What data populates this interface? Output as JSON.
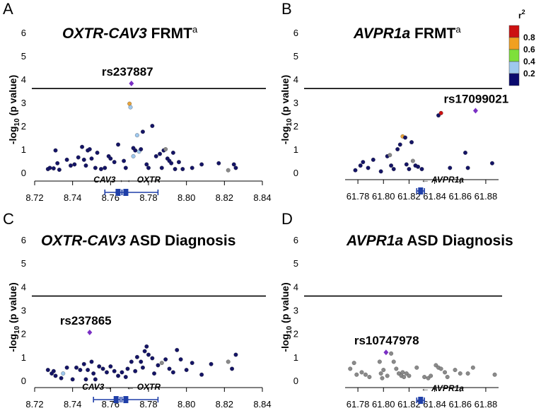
{
  "legend": {
    "title": "r2",
    "entries": [
      {
        "label": "0.8",
        "color": "#cc1111"
      },
      {
        "label": "0.6",
        "color": "#f0a020"
      },
      {
        "label": "0.4",
        "color": "#7ee03a"
      },
      {
        "label": "0.2",
        "color": "#9ec8ee"
      },
      {
        "label": "",
        "color": "#0a0a6e"
      }
    ]
  },
  "colors": {
    "navy": "#141466",
    "light_blue": "#9ec8ee",
    "orange": "#e8a33a",
    "red": "#cc1111",
    "gray": "#8a8a8a",
    "lead_purple": "#7a2fc4",
    "gene_blue": "#1f3fa8"
  },
  "chart_data": [
    {
      "type": "scatter",
      "panel": "A",
      "title": "OXTR-CAV3 FRMT",
      "title_superscript": "a",
      "ylabel": "-log10 (p value)",
      "ylim": [
        0,
        6
      ],
      "y_ticks": [
        "0",
        "1",
        "2",
        "3",
        "4",
        "5",
        "6"
      ],
      "xlim": [
        8.72,
        8.84
      ],
      "x_ticks": [
        "8.72",
        "8.74",
        "8.76",
        "8.78",
        "8.80",
        "8.82",
        "8.84"
      ],
      "threshold": 3.6,
      "lead_snp": {
        "label": "rs237887",
        "x": 8.771,
        "y": 3.82
      },
      "genes": [
        {
          "name": "CAV3",
          "direction": "right",
          "start": 8.757,
          "end": 8.766
        },
        {
          "name": "OXTR",
          "direction": "left",
          "start": 8.766,
          "end": 8.785
        }
      ],
      "points": [
        {
          "x": 8.727,
          "y": 0.15,
          "c": "navy"
        },
        {
          "x": 8.728,
          "y": 0.2,
          "c": "navy"
        },
        {
          "x": 8.73,
          "y": 0.18,
          "c": "navy"
        },
        {
          "x": 8.731,
          "y": 0.95,
          "c": "navy"
        },
        {
          "x": 8.732,
          "y": 0.4,
          "c": "navy"
        },
        {
          "x": 8.733,
          "y": 0.12,
          "c": "navy"
        },
        {
          "x": 8.737,
          "y": 0.55,
          "c": "navy"
        },
        {
          "x": 8.739,
          "y": 0.3,
          "c": "navy"
        },
        {
          "x": 8.741,
          "y": 0.35,
          "c": "navy"
        },
        {
          "x": 8.743,
          "y": 0.65,
          "c": "navy"
        },
        {
          "x": 8.745,
          "y": 1.1,
          "c": "navy"
        },
        {
          "x": 8.746,
          "y": 0.55,
          "c": "navy"
        },
        {
          "x": 8.747,
          "y": 0.3,
          "c": "navy"
        },
        {
          "x": 8.748,
          "y": 0.95,
          "c": "navy"
        },
        {
          "x": 8.749,
          "y": 1.0,
          "c": "navy"
        },
        {
          "x": 8.75,
          "y": 0.6,
          "c": "navy"
        },
        {
          "x": 8.752,
          "y": 0.2,
          "c": "navy"
        },
        {
          "x": 8.753,
          "y": 0.85,
          "c": "navy"
        },
        {
          "x": 8.755,
          "y": 0.15,
          "c": "navy"
        },
        {
          "x": 8.757,
          "y": 0.2,
          "c": "navy"
        },
        {
          "x": 8.759,
          "y": 0.7,
          "c": "navy"
        },
        {
          "x": 8.76,
          "y": 0.6,
          "c": "navy"
        },
        {
          "x": 8.762,
          "y": 0.45,
          "c": "navy"
        },
        {
          "x": 8.764,
          "y": 1.2,
          "c": "navy"
        },
        {
          "x": 8.767,
          "y": 0.5,
          "c": "navy"
        },
        {
          "x": 8.768,
          "y": 0.2,
          "c": "navy"
        },
        {
          "x": 8.77,
          "y": 2.95,
          "c": "orange"
        },
        {
          "x": 8.7705,
          "y": 2.8,
          "c": "light_blue"
        },
        {
          "x": 8.772,
          "y": 1.05,
          "c": "navy"
        },
        {
          "x": 8.773,
          "y": 0.95,
          "c": "navy"
        },
        {
          "x": 8.772,
          "y": 0.7,
          "c": "light_blue"
        },
        {
          "x": 8.774,
          "y": 1.6,
          "c": "light_blue"
        },
        {
          "x": 8.775,
          "y": 0.9,
          "c": "light_blue"
        },
        {
          "x": 8.776,
          "y": 1.0,
          "c": "navy"
        },
        {
          "x": 8.777,
          "y": 1.75,
          "c": "navy"
        },
        {
          "x": 8.779,
          "y": 0.35,
          "c": "navy"
        },
        {
          "x": 8.78,
          "y": 0.2,
          "c": "navy"
        },
        {
          "x": 8.782,
          "y": 2.0,
          "c": "navy"
        },
        {
          "x": 8.784,
          "y": 0.7,
          "c": "navy"
        },
        {
          "x": 8.786,
          "y": 0.8,
          "c": "navy"
        },
        {
          "x": 8.787,
          "y": 0.2,
          "c": "navy"
        },
        {
          "x": 8.788,
          "y": 0.95,
          "c": "navy"
        },
        {
          "x": 8.789,
          "y": 1.0,
          "c": "gray"
        },
        {
          "x": 8.79,
          "y": 0.6,
          "c": "navy"
        },
        {
          "x": 8.791,
          "y": 0.5,
          "c": "navy"
        },
        {
          "x": 8.792,
          "y": 0.4,
          "c": "navy"
        },
        {
          "x": 8.793,
          "y": 0.85,
          "c": "navy"
        },
        {
          "x": 8.794,
          "y": 0.15,
          "c": "navy"
        },
        {
          "x": 8.796,
          "y": 0.45,
          "c": "navy"
        },
        {
          "x": 8.798,
          "y": 0.15,
          "c": "navy"
        },
        {
          "x": 8.803,
          "y": 0.2,
          "c": "navy"
        },
        {
          "x": 8.808,
          "y": 0.35,
          "c": "navy"
        },
        {
          "x": 8.817,
          "y": 0.4,
          "c": "navy"
        },
        {
          "x": 8.822,
          "y": 0.1,
          "c": "gray"
        },
        {
          "x": 8.825,
          "y": 0.35,
          "c": "navy"
        },
        {
          "x": 8.826,
          "y": 0.2,
          "c": "navy"
        }
      ]
    },
    {
      "type": "scatter",
      "panel": "B",
      "title": "AVPR1a FRMT",
      "title_superscript": "a",
      "ylabel": "-log10 (p value)",
      "ylim": [
        0,
        6
      ],
      "y_ticks": [
        "0",
        "1",
        "2",
        "3",
        "4",
        "5",
        "6"
      ],
      "xlim": [
        61.77,
        61.89
      ],
      "x_ticks": [
        "61.78",
        "61.80",
        "61.82",
        "61.84",
        "61.86",
        "61.88"
      ],
      "threshold": 3.6,
      "lead_snp": {
        "label": "rs17099021",
        "x": 61.872,
        "y": 2.65
      },
      "genes": [
        {
          "name": "AVPR1a",
          "direction": "left",
          "start": 61.826,
          "end": 61.832
        }
      ],
      "points": [
        {
          "x": 61.778,
          "y": 0.1,
          "c": "navy"
        },
        {
          "x": 61.782,
          "y": 0.3,
          "c": "navy"
        },
        {
          "x": 61.784,
          "y": 0.45,
          "c": "navy"
        },
        {
          "x": 61.788,
          "y": 0.2,
          "c": "navy"
        },
        {
          "x": 61.792,
          "y": 0.55,
          "c": "navy"
        },
        {
          "x": 61.798,
          "y": 0.05,
          "c": "navy"
        },
        {
          "x": 61.803,
          "y": 0.7,
          "c": "navy"
        },
        {
          "x": 61.805,
          "y": 0.75,
          "c": "gray"
        },
        {
          "x": 61.806,
          "y": 0.3,
          "c": "navy"
        },
        {
          "x": 61.808,
          "y": 0.15,
          "c": "navy"
        },
        {
          "x": 61.811,
          "y": 1.0,
          "c": "navy"
        },
        {
          "x": 61.813,
          "y": 1.2,
          "c": "navy"
        },
        {
          "x": 61.815,
          "y": 1.55,
          "c": "orange"
        },
        {
          "x": 61.817,
          "y": 1.5,
          "c": "navy"
        },
        {
          "x": 61.818,
          "y": 0.35,
          "c": "navy"
        },
        {
          "x": 61.82,
          "y": 0.15,
          "c": "navy"
        },
        {
          "x": 61.822,
          "y": 1.3,
          "c": "navy"
        },
        {
          "x": 61.823,
          "y": 0.5,
          "c": "gray"
        },
        {
          "x": 61.825,
          "y": 0.3,
          "c": "navy"
        },
        {
          "x": 61.827,
          "y": 0.25,
          "c": "navy"
        },
        {
          "x": 61.83,
          "y": 0.15,
          "c": "navy"
        },
        {
          "x": 61.843,
          "y": 2.45,
          "c": "navy"
        },
        {
          "x": 61.845,
          "y": 2.55,
          "c": "red"
        },
        {
          "x": 61.852,
          "y": 0.2,
          "c": "navy"
        },
        {
          "x": 61.864,
          "y": 0.85,
          "c": "navy"
        },
        {
          "x": 61.866,
          "y": 0.2,
          "c": "navy"
        },
        {
          "x": 61.885,
          "y": 0.4,
          "c": "navy"
        }
      ]
    },
    {
      "type": "scatter",
      "panel": "C",
      "title": "OXTR-CAV3 ASD Diagnosis",
      "ylabel": "-log10 (p value)",
      "ylim": [
        0,
        6
      ],
      "y_ticks": [
        "0",
        "1",
        "2",
        "3",
        "4",
        "5",
        "6"
      ],
      "xlim": [
        8.72,
        8.84
      ],
      "x_ticks": [
        "8.72",
        "8.74",
        "8.76",
        "8.78",
        "8.80",
        "8.82",
        "8.84"
      ],
      "threshold": 3.6,
      "lead_snp": {
        "label": "rs237865",
        "x": 8.749,
        "y": 2.05
      },
      "genes": [
        {
          "name": "CAV3",
          "direction": "right",
          "start": 8.751,
          "end": 8.765
        },
        {
          "name": "OXTR",
          "direction": "left",
          "start": 8.766,
          "end": 8.785
        }
      ],
      "points": [
        {
          "x": 8.727,
          "y": 0.45,
          "c": "navy"
        },
        {
          "x": 8.729,
          "y": 0.3,
          "c": "navy"
        },
        {
          "x": 8.73,
          "y": 0.4,
          "c": "navy"
        },
        {
          "x": 8.731,
          "y": 0.2,
          "c": "navy"
        },
        {
          "x": 8.734,
          "y": 0.1,
          "c": "navy"
        },
        {
          "x": 8.735,
          "y": 0.3,
          "c": "light_blue"
        },
        {
          "x": 8.737,
          "y": 0.55,
          "c": "navy"
        },
        {
          "x": 8.74,
          "y": 0.05,
          "c": "navy"
        },
        {
          "x": 8.742,
          "y": 0.55,
          "c": "navy"
        },
        {
          "x": 8.744,
          "y": 0.45,
          "c": "navy"
        },
        {
          "x": 8.746,
          "y": 0.7,
          "c": "navy"
        },
        {
          "x": 8.747,
          "y": 0.05,
          "c": "navy"
        },
        {
          "x": 8.748,
          "y": 0.45,
          "c": "navy"
        },
        {
          "x": 8.75,
          "y": 0.8,
          "c": "navy"
        },
        {
          "x": 8.751,
          "y": 0.3,
          "c": "navy"
        },
        {
          "x": 8.752,
          "y": 0.05,
          "c": "navy"
        },
        {
          "x": 8.754,
          "y": 0.6,
          "c": "navy"
        },
        {
          "x": 8.756,
          "y": 0.5,
          "c": "navy"
        },
        {
          "x": 8.758,
          "y": 0.35,
          "c": "navy"
        },
        {
          "x": 8.76,
          "y": 0.6,
          "c": "navy"
        },
        {
          "x": 8.762,
          "y": 0.4,
          "c": "navy"
        },
        {
          "x": 8.764,
          "y": 0.2,
          "c": "navy"
        },
        {
          "x": 8.766,
          "y": 0.35,
          "c": "navy"
        },
        {
          "x": 8.768,
          "y": 0.15,
          "c": "navy"
        },
        {
          "x": 8.769,
          "y": 0.5,
          "c": "navy"
        },
        {
          "x": 8.771,
          "y": 0.8,
          "c": "navy"
        },
        {
          "x": 8.773,
          "y": 0.4,
          "c": "navy"
        },
        {
          "x": 8.774,
          "y": 1.0,
          "c": "navy"
        },
        {
          "x": 8.776,
          "y": 0.8,
          "c": "navy"
        },
        {
          "x": 8.777,
          "y": 0.55,
          "c": "navy"
        },
        {
          "x": 8.778,
          "y": 1.25,
          "c": "navy"
        },
        {
          "x": 8.779,
          "y": 1.45,
          "c": "navy"
        },
        {
          "x": 8.78,
          "y": 1.1,
          "c": "navy"
        },
        {
          "x": 8.782,
          "y": 0.95,
          "c": "navy"
        },
        {
          "x": 8.783,
          "y": 0.3,
          "c": "navy"
        },
        {
          "x": 8.785,
          "y": 0.65,
          "c": "navy"
        },
        {
          "x": 8.787,
          "y": 0.75,
          "c": "gray"
        },
        {
          "x": 8.789,
          "y": 0.9,
          "c": "navy"
        },
        {
          "x": 8.791,
          "y": 0.5,
          "c": "navy"
        },
        {
          "x": 8.793,
          "y": 0.35,
          "c": "navy"
        },
        {
          "x": 8.795,
          "y": 1.3,
          "c": "navy"
        },
        {
          "x": 8.797,
          "y": 0.9,
          "c": "navy"
        },
        {
          "x": 8.8,
          "y": 0.45,
          "c": "navy"
        },
        {
          "x": 8.803,
          "y": 0.75,
          "c": "navy"
        },
        {
          "x": 8.808,
          "y": 0.25,
          "c": "navy"
        },
        {
          "x": 8.813,
          "y": 0.7,
          "c": "navy"
        },
        {
          "x": 8.822,
          "y": 0.8,
          "c": "gray"
        },
        {
          "x": 8.824,
          "y": 0.5,
          "c": "navy"
        },
        {
          "x": 8.826,
          "y": 1.1,
          "c": "navy"
        }
      ]
    },
    {
      "type": "scatter",
      "panel": "D",
      "title": "AVPR1a ASD Diagnosis",
      "ylabel": "-log10 (p value)",
      "ylim": [
        0,
        6
      ],
      "y_ticks": [
        "0",
        "1",
        "2",
        "3",
        "4",
        "5",
        "6"
      ],
      "xlim": [
        61.77,
        61.89
      ],
      "x_ticks": [
        "61.78",
        "61.80",
        "61.82",
        "61.84",
        "61.86",
        "61.88"
      ],
      "threshold": 3.6,
      "lead_snp": {
        "label": "rs10747978",
        "x": 61.802,
        "y": 1.2
      },
      "genes": [
        {
          "name": "AVPR1a",
          "direction": "left",
          "start": 61.826,
          "end": 61.832
        }
      ],
      "points": [
        {
          "x": 61.774,
          "y": 0.5,
          "c": "gray"
        },
        {
          "x": 61.777,
          "y": 0.75,
          "c": "gray"
        },
        {
          "x": 61.779,
          "y": 0.25,
          "c": "gray"
        },
        {
          "x": 61.783,
          "y": 0.35,
          "c": "gray"
        },
        {
          "x": 61.786,
          "y": 0.25,
          "c": "gray"
        },
        {
          "x": 61.789,
          "y": 0.15,
          "c": "gray"
        },
        {
          "x": 61.797,
          "y": 0.8,
          "c": "gray"
        },
        {
          "x": 61.798,
          "y": 0.3,
          "c": "gray"
        },
        {
          "x": 61.799,
          "y": 0.1,
          "c": "gray"
        },
        {
          "x": 61.8,
          "y": 0.45,
          "c": "gray"
        },
        {
          "x": 61.803,
          "y": 0.2,
          "c": "gray"
        },
        {
          "x": 61.806,
          "y": 1.15,
          "c": "gray"
        },
        {
          "x": 61.808,
          "y": 0.8,
          "c": "gray"
        },
        {
          "x": 61.81,
          "y": 0.5,
          "c": "gray"
        },
        {
          "x": 61.812,
          "y": 0.3,
          "c": "gray"
        },
        {
          "x": 61.814,
          "y": 0.2,
          "c": "gray"
        },
        {
          "x": 61.815,
          "y": 0.35,
          "c": "gray"
        },
        {
          "x": 61.816,
          "y": 0.15,
          "c": "gray"
        },
        {
          "x": 61.818,
          "y": 0.3,
          "c": "gray"
        },
        {
          "x": 61.82,
          "y": 0.2,
          "c": "gray"
        },
        {
          "x": 61.826,
          "y": 0.55,
          "c": "gray"
        },
        {
          "x": 61.832,
          "y": 0.15,
          "c": "gray"
        },
        {
          "x": 61.835,
          "y": 0.1,
          "c": "gray"
        },
        {
          "x": 61.837,
          "y": 0.2,
          "c": "gray"
        },
        {
          "x": 61.841,
          "y": 0.65,
          "c": "gray"
        },
        {
          "x": 61.843,
          "y": 0.55,
          "c": "gray"
        },
        {
          "x": 61.845,
          "y": 0.5,
          "c": "gray"
        },
        {
          "x": 61.848,
          "y": 0.35,
          "c": "gray"
        },
        {
          "x": 61.85,
          "y": 0.15,
          "c": "gray"
        },
        {
          "x": 61.856,
          "y": 0.45,
          "c": "gray"
        },
        {
          "x": 61.86,
          "y": 0.3,
          "c": "gray"
        },
        {
          "x": 61.866,
          "y": 0.3,
          "c": "gray"
        },
        {
          "x": 61.87,
          "y": 0.55,
          "c": "gray"
        },
        {
          "x": 61.887,
          "y": 0.25,
          "c": "gray"
        }
      ]
    }
  ]
}
